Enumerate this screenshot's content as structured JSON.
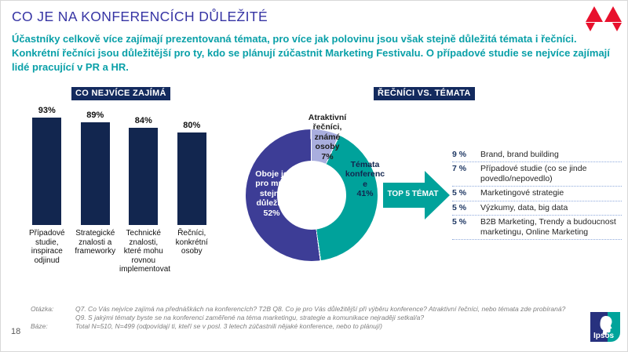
{
  "slide": {
    "title": "CO JE NA KONFERENCÍCH DŮLEŽITÉ",
    "subtitle": "Účastníky celkově více zajímají prezentovaná témata, pro více jak polovinu jsou však stejně důležitá témata i řečníci. Konkrétní řečníci jsou důležitější pro ty, kdo se plánují zúčastnit Marketing Festivalu. O případové studie se nejvíce zajímají lidé pracující v PR a HR.",
    "page_number": "18"
  },
  "colors": {
    "navy": "#12264F",
    "title_blue": "#3634A4",
    "subtitle_teal": "#0AA0A8",
    "donut_purple": "#3D3D96",
    "donut_teal": "#00A29B",
    "donut_lavender": "#A9AEDE",
    "dotted_separator": "#8FAADC",
    "logo_red": "#E8112D"
  },
  "chart_data": [
    {
      "type": "bar",
      "title": "CO NEJVÍCE ZAJÍMÁ",
      "categories": [
        "Případové studie, inspirace odjinud",
        "Strategické znalosti a frameworky",
        "Technické znalosti, které mohu rovnou implementovat",
        "Řečníci, konkrétní osoby"
      ],
      "values": [
        93,
        89,
        84,
        80
      ],
      "value_labels": [
        "93%",
        "89%",
        "84%",
        "80%"
      ],
      "unit": "%",
      "ylim": [
        0,
        100
      ],
      "grid": false,
      "bar_color": "#12264F"
    },
    {
      "type": "pie",
      "donut": true,
      "title": "ŘEČNÍCI VS. TÉMATA",
      "start_angle_deg": 0,
      "direction": "clockwise",
      "segments": [
        {
          "label": "Atraktivní řečníci, známé osoby",
          "value": 7,
          "pct": "7%",
          "color": "#A9AEDE"
        },
        {
          "label": "Témata konference",
          "value": 41,
          "pct": "41%",
          "color": "#00A29B"
        },
        {
          "label": "Oboje je pro mne stejně důležité",
          "value": 52,
          "pct": "52%",
          "color": "#3D3D96"
        }
      ]
    },
    {
      "type": "table",
      "title": "TOP 5 TÉMAT",
      "rows": [
        {
          "pct": "9 %",
          "label": "Brand, brand building"
        },
        {
          "pct": "7 %",
          "label": "Případové studie (co se jinde povedlo/nepovedlo)"
        },
        {
          "pct": "5 %",
          "label": "Marketingové strategie"
        },
        {
          "pct": "5 %",
          "label": "Výzkumy, data, big data"
        },
        {
          "pct": "5 %",
          "label": "B2B Marketing, Trendy a budoucnost marketingu, Online Marketing"
        }
      ]
    }
  ],
  "footer": {
    "rows": [
      {
        "label": "Otázka:",
        "text": "Q7. Co Vás nejvíce zajímá na přednáškách na konferencích? T2B Q8. Co je pro Vás důležitější při výběru konference? Atraktivní řečníci, nebo témata zde probíraná?"
      },
      {
        "label": "",
        "text": "Q9. S jakými tématy byste se na konferenci zaměřené na téma marketingu, strategie a komunikace nejraději setkal/a?"
      },
      {
        "label": "Báze:",
        "text": "Total N=510, N=499 (odpovídají ti, kteří se v posl. 3 letech zúčastnili nějaké konference, nebo to plánují)"
      }
    ]
  },
  "logos": {
    "ipsos_label": "Ipsos",
    "marketing_festival": "marketing-festival-mark"
  }
}
